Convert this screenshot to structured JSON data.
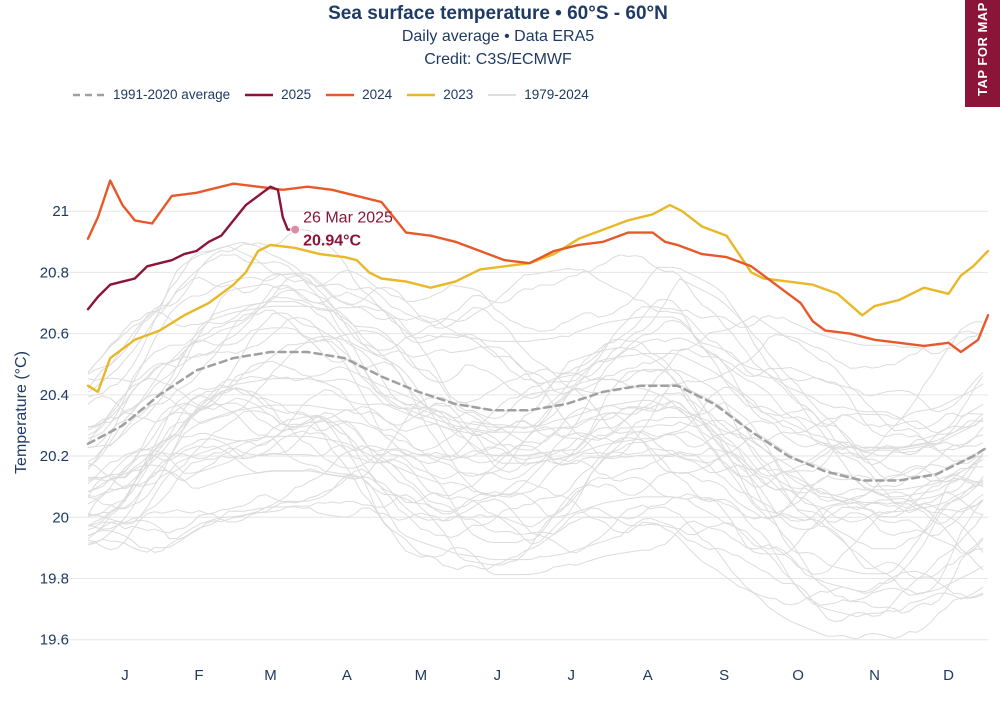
{
  "header": {
    "title": "Sea surface temperature • 60°S - 60°N",
    "subtitle": "Daily average • Data ERA5",
    "credit": "Credit: C3S/ECMWF"
  },
  "map_tab": {
    "label": "TAP FOR MAP"
  },
  "colors": {
    "s2025": "#8a1538",
    "s2024": "#e8592a",
    "s2023": "#e8b828",
    "avg": "#a0a0a0",
    "history": "#dcdcdc",
    "grid": "#e6e6e6",
    "text": "#1f3a64",
    "tab": "#8a1538"
  },
  "legend": [
    {
      "label": "1991-2020 average",
      "key": "avg"
    },
    {
      "label": "2025",
      "key": "s2025"
    },
    {
      "label": "2024",
      "key": "s2024"
    },
    {
      "label": "2023",
      "key": "s2023"
    },
    {
      "label": "1979-2024",
      "key": "history"
    }
  ],
  "annotation": {
    "date": "26 Mar 2025",
    "value": "20.94°C",
    "day": 85,
    "temp": 20.94
  },
  "chart_data": {
    "type": "line",
    "title": "Sea surface temperature • 60°S - 60°N",
    "subtitle": "Daily average • Data ERA5",
    "xlabel": "",
    "ylabel": "Temperature (°C)",
    "xlim": [
      1,
      366
    ],
    "ylim": [
      19.55,
      21.2
    ],
    "y_ticks": [
      19.6,
      19.8,
      20,
      20.2,
      20.4,
      20.6,
      20.8,
      21
    ],
    "y_tick_labels": [
      "19.6",
      "19.8",
      "20",
      "20.2",
      "20.4",
      "20.6",
      "20.8",
      "21"
    ],
    "month_labels": [
      "J",
      "F",
      "M",
      "A",
      "M",
      "J",
      "J",
      "A",
      "S",
      "O",
      "N",
      "D"
    ],
    "month_positions": [
      16,
      46,
      75,
      106,
      136,
      167,
      197,
      228,
      259,
      289,
      320,
      350
    ],
    "grid": true,
    "legend_position": "top-left",
    "series": [
      {
        "name": "1991-2020 average",
        "key": "avg",
        "style": "dashed",
        "points": [
          [
            1,
            20.24
          ],
          [
            15,
            20.3
          ],
          [
            30,
            20.4
          ],
          [
            45,
            20.48
          ],
          [
            60,
            20.52
          ],
          [
            75,
            20.54
          ],
          [
            90,
            20.54
          ],
          [
            105,
            20.52
          ],
          [
            120,
            20.46
          ],
          [
            135,
            20.41
          ],
          [
            150,
            20.37
          ],
          [
            165,
            20.35
          ],
          [
            180,
            20.35
          ],
          [
            195,
            20.37
          ],
          [
            210,
            20.41
          ],
          [
            225,
            20.43
          ],
          [
            240,
            20.43
          ],
          [
            255,
            20.37
          ],
          [
            270,
            20.28
          ],
          [
            285,
            20.2
          ],
          [
            300,
            20.15
          ],
          [
            315,
            20.12
          ],
          [
            330,
            20.12
          ],
          [
            345,
            20.14
          ],
          [
            360,
            20.2
          ],
          [
            366,
            20.23
          ]
        ]
      },
      {
        "name": "2023",
        "key": "s2023",
        "style": "solid",
        "points": [
          [
            1,
            20.43
          ],
          [
            5,
            20.41
          ],
          [
            10,
            20.52
          ],
          [
            20,
            20.58
          ],
          [
            30,
            20.61
          ],
          [
            40,
            20.66
          ],
          [
            50,
            20.7
          ],
          [
            60,
            20.76
          ],
          [
            65,
            20.8
          ],
          [
            70,
            20.87
          ],
          [
            75,
            20.89
          ],
          [
            85,
            20.88
          ],
          [
            95,
            20.86
          ],
          [
            105,
            20.85
          ],
          [
            110,
            20.84
          ],
          [
            115,
            20.8
          ],
          [
            120,
            20.78
          ],
          [
            130,
            20.77
          ],
          [
            140,
            20.75
          ],
          [
            150,
            20.77
          ],
          [
            160,
            20.81
          ],
          [
            170,
            20.82
          ],
          [
            180,
            20.83
          ],
          [
            190,
            20.86
          ],
          [
            200,
            20.91
          ],
          [
            210,
            20.94
          ],
          [
            220,
            20.97
          ],
          [
            230,
            20.99
          ],
          [
            237,
            21.02
          ],
          [
            242,
            21.0
          ],
          [
            250,
            20.95
          ],
          [
            260,
            20.92
          ],
          [
            270,
            20.8
          ],
          [
            275,
            20.78
          ],
          [
            285,
            20.77
          ],
          [
            295,
            20.76
          ],
          [
            305,
            20.73
          ],
          [
            315,
            20.66
          ],
          [
            320,
            20.69
          ],
          [
            330,
            20.71
          ],
          [
            340,
            20.75
          ],
          [
            350,
            20.73
          ],
          [
            355,
            20.79
          ],
          [
            360,
            20.82
          ],
          [
            366,
            20.87
          ]
        ]
      },
      {
        "name": "2024",
        "key": "s2024",
        "style": "solid",
        "points": [
          [
            1,
            20.91
          ],
          [
            5,
            20.98
          ],
          [
            10,
            21.1
          ],
          [
            15,
            21.02
          ],
          [
            20,
            20.97
          ],
          [
            27,
            20.96
          ],
          [
            35,
            21.05
          ],
          [
            45,
            21.06
          ],
          [
            55,
            21.08
          ],
          [
            60,
            21.09
          ],
          [
            70,
            21.08
          ],
          [
            80,
            21.07
          ],
          [
            90,
            21.08
          ],
          [
            100,
            21.07
          ],
          [
            110,
            21.05
          ],
          [
            120,
            21.03
          ],
          [
            125,
            20.98
          ],
          [
            130,
            20.93
          ],
          [
            140,
            20.92
          ],
          [
            150,
            20.9
          ],
          [
            160,
            20.87
          ],
          [
            170,
            20.84
          ],
          [
            180,
            20.83
          ],
          [
            190,
            20.87
          ],
          [
            200,
            20.89
          ],
          [
            210,
            20.9
          ],
          [
            220,
            20.93
          ],
          [
            230,
            20.93
          ],
          [
            235,
            20.9
          ],
          [
            240,
            20.89
          ],
          [
            250,
            20.86
          ],
          [
            260,
            20.85
          ],
          [
            270,
            20.82
          ],
          [
            280,
            20.76
          ],
          [
            290,
            20.7
          ],
          [
            295,
            20.64
          ],
          [
            300,
            20.61
          ],
          [
            310,
            20.6
          ],
          [
            320,
            20.58
          ],
          [
            330,
            20.57
          ],
          [
            340,
            20.56
          ],
          [
            350,
            20.57
          ],
          [
            355,
            20.54
          ],
          [
            362,
            20.58
          ],
          [
            366,
            20.66
          ]
        ]
      },
      {
        "name": "2025",
        "key": "s2025",
        "style": "solid",
        "points": [
          [
            1,
            20.68
          ],
          [
            5,
            20.72
          ],
          [
            10,
            20.76
          ],
          [
            15,
            20.77
          ],
          [
            20,
            20.78
          ],
          [
            25,
            20.82
          ],
          [
            30,
            20.83
          ],
          [
            35,
            20.84
          ],
          [
            40,
            20.86
          ],
          [
            45,
            20.87
          ],
          [
            50,
            20.9
          ],
          [
            55,
            20.92
          ],
          [
            60,
            20.97
          ],
          [
            65,
            21.02
          ],
          [
            70,
            21.05
          ],
          [
            75,
            21.08
          ],
          [
            78,
            21.07
          ],
          [
            80,
            20.98
          ],
          [
            82,
            20.94
          ],
          [
            85,
            20.94
          ]
        ]
      }
    ],
    "annotation": {
      "label": "26 Mar 2025",
      "value_label": "20.94°C",
      "day": 85,
      "temp": 20.94
    }
  }
}
